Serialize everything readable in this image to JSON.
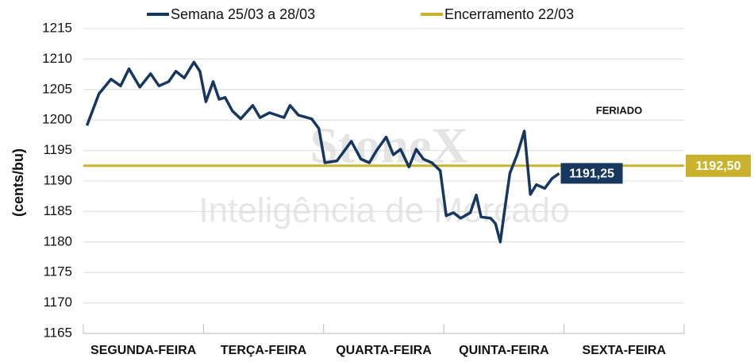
{
  "chart_data": {
    "type": "line",
    "ylabel": "(cents/bu)",
    "categories": [
      "SEGUNDA-FEIRA",
      "TERÇA-FEIRA",
      "QUARTA-FEIRA",
      "QUINTA-FEIRA",
      "SEXTA-FEIRA"
    ],
    "xlim": [
      0,
      5
    ],
    "ylim": [
      1165,
      1215
    ],
    "yticks": [
      1165,
      1170,
      1175,
      1180,
      1185,
      1190,
      1195,
      1200,
      1205,
      1210,
      1215
    ],
    "grid": true,
    "annotation": "FERIADO",
    "watermark": [
      "StoneX",
      "Inteligência de Mercado"
    ],
    "series": [
      {
        "name": "Semana 25/03 a 28/03",
        "color": "#17375e",
        "x": [
          0.03,
          0.13,
          0.23,
          0.31,
          0.38,
          0.47,
          0.56,
          0.63,
          0.71,
          0.77,
          0.84,
          0.92,
          0.97,
          1.02,
          1.08,
          1.13,
          1.18,
          1.24,
          1.31,
          1.41,
          1.47,
          1.55,
          1.67,
          1.72,
          1.79,
          1.9,
          1.96,
          2.01,
          2.11,
          2.23,
          2.31,
          2.38,
          2.44,
          2.52,
          2.58,
          2.64,
          2.71,
          2.77,
          2.83,
          2.9,
          2.97,
          3.02,
          3.08,
          3.14,
          3.22,
          3.27,
          3.31,
          3.39,
          3.43,
          3.47,
          3.51,
          3.55,
          3.61,
          3.67,
          3.72,
          3.77,
          3.84,
          3.9,
          3.96
        ],
        "values": [
          1199.1,
          1204.3,
          1206.7,
          1205.6,
          1208.4,
          1205.4,
          1207.6,
          1205.6,
          1206.3,
          1208,
          1206.9,
          1209.5,
          1208,
          1203,
          1206.3,
          1203.4,
          1203.7,
          1201.5,
          1200.2,
          1202.4,
          1200.4,
          1201.2,
          1200.4,
          1202.4,
          1200.8,
          1200.2,
          1198.6,
          1193,
          1193.3,
          1196.5,
          1193.6,
          1193,
          1195,
          1197.2,
          1194.3,
          1195.2,
          1192.3,
          1195.2,
          1193.6,
          1193,
          1191.7,
          1184.3,
          1184.8,
          1183.9,
          1184.8,
          1187.7,
          1184.1,
          1183.9,
          1183,
          1180,
          1185.8,
          1191.3,
          1194.3,
          1198.2,
          1187.8,
          1189.4,
          1188.8,
          1190.4,
          1191.25
        ],
        "end_label": "1191,25"
      },
      {
        "name": "Encerramento 22/03",
        "color": "#c8b22e",
        "value": 1192.5,
        "value_label": "1192,50"
      }
    ]
  }
}
